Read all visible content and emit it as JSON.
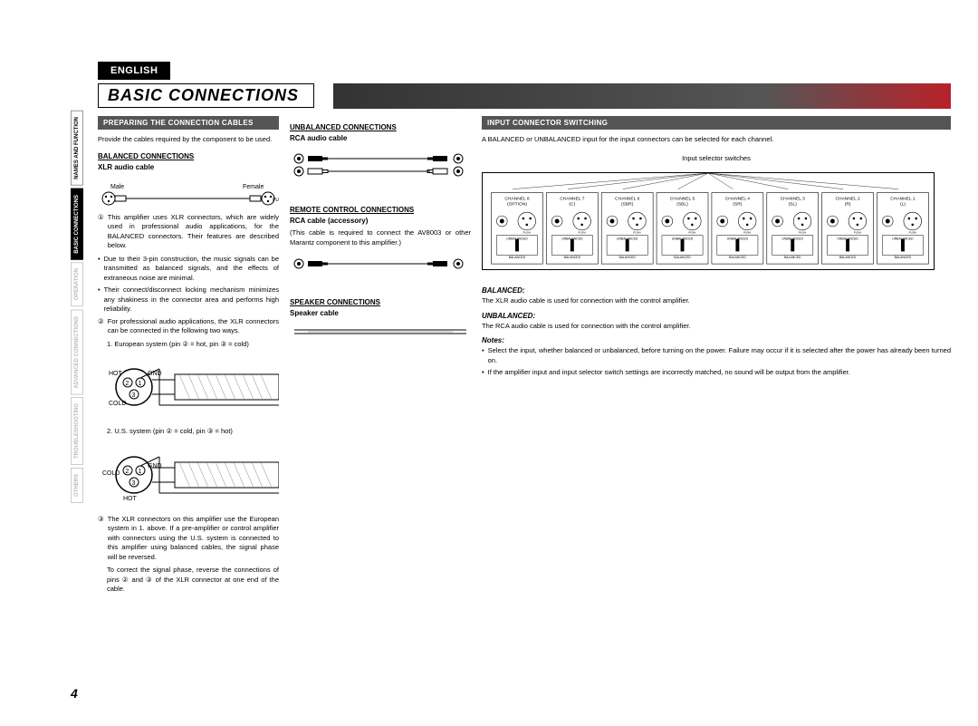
{
  "page": {
    "lang": "ENGLISH",
    "number": "4",
    "title": "BASIC CONNECTIONS"
  },
  "sideTabs": [
    {
      "label": "NAMES AND FUNCTION",
      "active": false,
      "dim": false
    },
    {
      "label": "BASIC CONNECTIONS",
      "active": true,
      "dim": false
    },
    {
      "label": "OPERATION",
      "active": false,
      "dim": true
    },
    {
      "label": "ADVANCED CONNECTIONS",
      "active": false,
      "dim": true
    },
    {
      "label": "TROUBLESHOOTING",
      "active": false,
      "dim": true
    },
    {
      "label": "OTHERS",
      "active": false,
      "dim": true
    }
  ],
  "col1": {
    "sectionHeader": "PREPARING THE CONNECTION CABLES",
    "intro": "Provide the cables required by the component to be used.",
    "balanced": {
      "title": "BALANCED CONNECTIONS",
      "cable": "XLR audio cable",
      "male": "Male",
      "female": "Female"
    },
    "item1": "This amplifier uses XLR connectors, which are widely used in professional audio applications, for the BALANCED connectors. Their features are described below.",
    "bullets12": [
      "Due to their 3-pin construction, the music signals can be transmitted as balanced signals, and the effects of extraneous noise are minimal.",
      "Their connect/disconnect locking mechanism minimizes any shakiness in the connector area and performs high reliability."
    ],
    "item2": "For professional audio applications, the XLR connectors can be connected in the following two ways.",
    "systems": [
      "1. European system (pin ② = hot, pin ③ = cold)",
      "2. U.S. system (pin ② = cold, pin ③ = hot)"
    ],
    "diagram1": {
      "hot": "HOT",
      "cold": "COLD",
      "gnd": "GND",
      "pins": [
        "2",
        "1",
        "3"
      ]
    },
    "diagram2": {
      "hot": "HOT",
      "cold": "COLD",
      "gnd": "GND",
      "pins": [
        "2",
        "1",
        "3"
      ]
    },
    "item3": "The XLR connectors on this amplifier use the European system in 1. above. If a pre-amplifier or control amplifier with connectors using the U.S. system is connected to this amplifier using balanced cables, the signal phase will be reversed.",
    "item3tail": "To correct the signal phase, reverse the connections of pins ② and ③ of the XLR connector at one end of the cable."
  },
  "col2": {
    "unbalanced": {
      "title": "UNBALANCED CONNECTIONS",
      "cable": "RCA audio cable"
    },
    "remote": {
      "title": "REMOTE CONTROL CONNECTIONS",
      "cable": "RCA cable (accessory)",
      "note": "(This cable is required to connect the AV8003 or other Marantz component to this amplifier.)"
    },
    "speaker": {
      "title": "SPEAKER CONNECTIONS",
      "cable": "Speaker cable"
    }
  },
  "col3": {
    "sectionHeader": "INPUT CONNECTOR SWITCHING",
    "intro": "A BALANCED or UNBALANCED input for the input connectors can be selected for each channel.",
    "panel": {
      "caption": "Input selector switches",
      "channels": [
        {
          "name": "CHANNEL 8",
          "note": "(OPTION)"
        },
        {
          "name": "CHANNEL 7",
          "note": "(C)"
        },
        {
          "name": "CHANNEL 6",
          "note": "(SBR)"
        },
        {
          "name": "CHANNEL 5",
          "note": "(SBL)"
        },
        {
          "name": "CHANNEL 4",
          "note": "(SR)"
        },
        {
          "name": "CHANNEL 3",
          "note": "(SL)"
        },
        {
          "name": "CHANNEL 2",
          "note": "(R)"
        },
        {
          "name": "CHANNEL 1",
          "note": "(L)"
        }
      ],
      "switchTop": "UNBALANCED",
      "switchBottom": "BALANCED",
      "push": "PUSH"
    },
    "balanced": {
      "label": "BALANCED:",
      "text": "The XLR audio cable is used for connection with the control amplifier."
    },
    "unbalanced": {
      "label": "UNBALANCED:",
      "text": "The RCA audio cable is used for connection with the control amplifier."
    },
    "notes": {
      "label": "Notes:",
      "items": [
        "Select the input, whether balanced or unbalanced, before turning on the power. Failure may occur if it is selected after the power has already been turned on.",
        "If the amplifier input and input selector switch settings are incorrectly matched, no sound will be output from the amplifier."
      ]
    }
  },
  "colors": {
    "stripeAccent": "#b8222a",
    "barBg": "#555555",
    "dimText": "#bbbbbb"
  }
}
